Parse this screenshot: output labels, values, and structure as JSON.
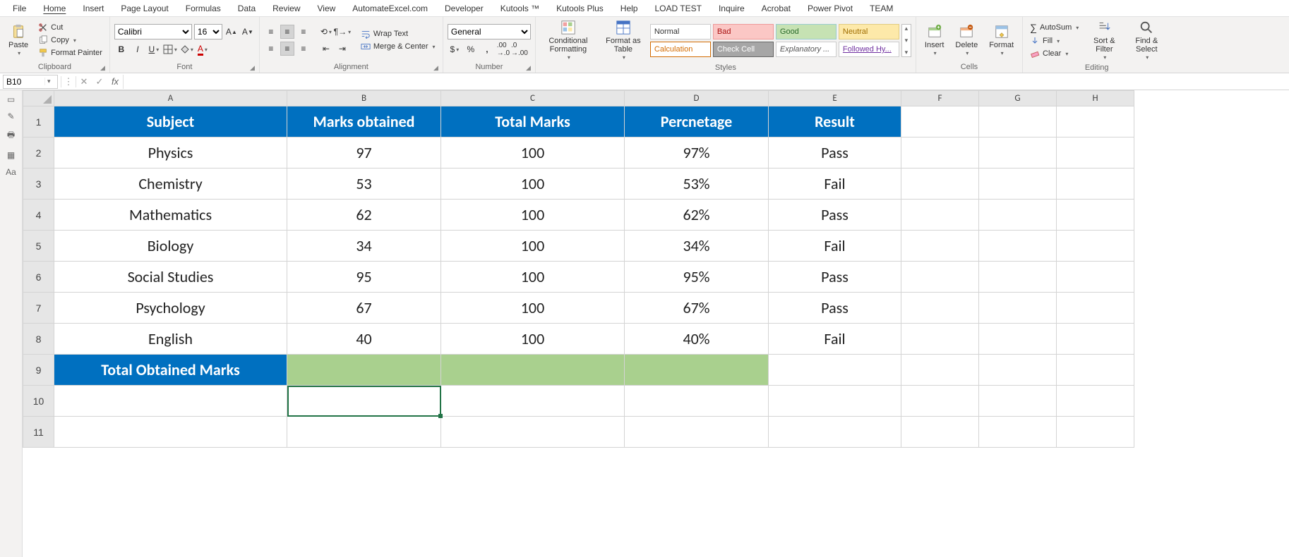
{
  "tabs": [
    "File",
    "Home",
    "Insert",
    "Page Layout",
    "Formulas",
    "Data",
    "Review",
    "View",
    "AutomateExcel.com",
    "Developer",
    "Kutools ™",
    "Kutools Plus",
    "Help",
    "LOAD TEST",
    "Inquire",
    "Acrobat",
    "Power Pivot",
    "TEAM"
  ],
  "active_tab_index": 1,
  "clipboard": {
    "paste": "Paste",
    "cut": "Cut",
    "copy": "Copy",
    "painter": "Format Painter",
    "label": "Clipboard"
  },
  "font": {
    "name": "Calibri",
    "size": "16",
    "label": "Font"
  },
  "alignment": {
    "wrap": "Wrap Text",
    "merge": "Merge & Center",
    "label": "Alignment"
  },
  "number": {
    "format": "General",
    "label": "Number"
  },
  "styles": {
    "cond": "Conditional Formatting",
    "tbl": "Format as Table",
    "normal": "Normal",
    "bad": "Bad",
    "good": "Good",
    "neutral": "Neutral",
    "calc": "Calculation",
    "check": "Check Cell",
    "expl": "Explanatory ...",
    "link": "Followed Hy...",
    "label": "Styles"
  },
  "cells": {
    "insert": "Insert",
    "delete": "Delete",
    "format": "Format",
    "label": "Cells"
  },
  "editing": {
    "autosum": "AutoSum",
    "fill": "Fill",
    "clear": "Clear",
    "sort": "Sort & Filter",
    "find": "Find & Select",
    "label": "Editing"
  },
  "namebox": "B10",
  "formula": "",
  "sheet": {
    "col_letters": [
      "A",
      "B",
      "C",
      "D",
      "E",
      "F",
      "G",
      "H"
    ],
    "row_nums": [
      "1",
      "2",
      "3",
      "4",
      "5",
      "6",
      "7",
      "8",
      "9",
      "10",
      "11"
    ],
    "headers": [
      "Subject",
      "Marks obtained",
      "Total Marks",
      "Percnetage",
      "Result"
    ],
    "rows": [
      {
        "a": "Physics",
        "b": "97",
        "c": "100",
        "d": "97%",
        "e": "Pass"
      },
      {
        "a": "Chemistry",
        "b": "53",
        "c": "100",
        "d": "53%",
        "e": "Fail"
      },
      {
        "a": "Mathematics",
        "b": "62",
        "c": "100",
        "d": "62%",
        "e": "Pass"
      },
      {
        "a": "Biology",
        "b": "34",
        "c": "100",
        "d": "34%",
        "e": "Fail"
      },
      {
        "a": "Social Studies",
        "b": "95",
        "c": "100",
        "d": "95%",
        "e": "Pass"
      },
      {
        "a": "Psychology",
        "b": "67",
        "c": "100",
        "d": "67%",
        "e": "Pass"
      },
      {
        "a": "English",
        "b": "40",
        "c": "100",
        "d": "40%",
        "e": "Fail"
      }
    ],
    "total_label": "Total Obtained Marks",
    "colors": {
      "header_bg": "#0070c0",
      "green_bg": "#a9d08e"
    }
  }
}
